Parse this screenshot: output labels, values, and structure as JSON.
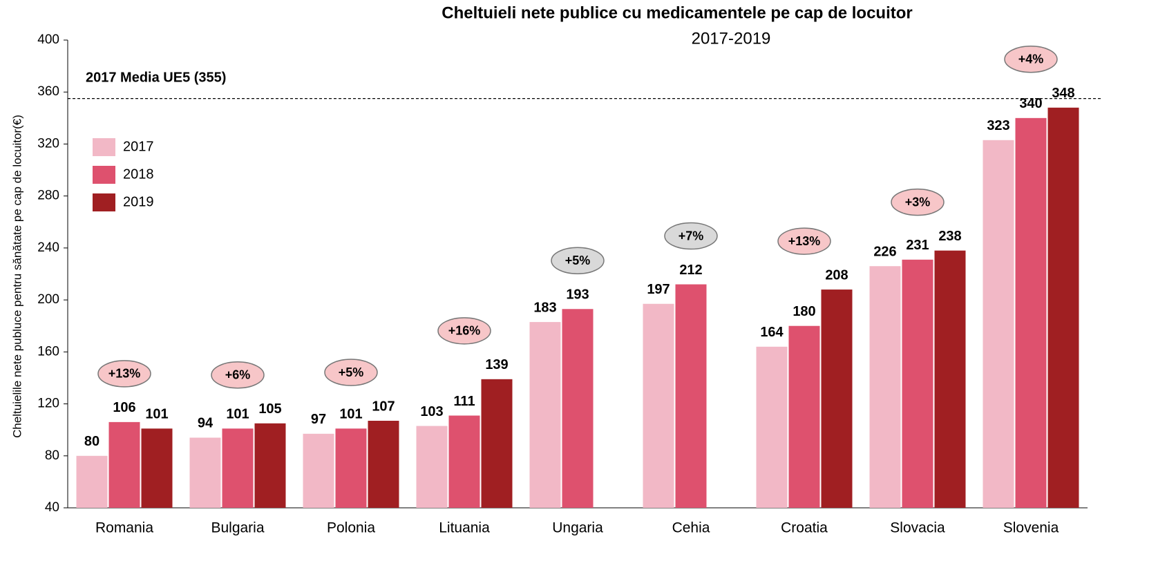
{
  "chart_data": {
    "type": "bar",
    "title": "Cheltuieli nete publice cu medicamentele pe cap de locuitor",
    "subtitle": "2017-2019",
    "y_label": "Cheltuielile nete publuce pentru sănătate pe cap de locuitor(€)",
    "categories": [
      "Romania",
      "Bulgaria",
      "Polonia",
      "Lituania",
      "Ungaria",
      "Cehia",
      "Croatia",
      "Slovacia",
      "Slovenia"
    ],
    "series": [
      {
        "name": "2017",
        "color": "#f2b8c6",
        "values": [
          80,
          94,
          97,
          103,
          183,
          197,
          164,
          226,
          323
        ]
      },
      {
        "name": "2018",
        "color": "#de516e",
        "values": [
          106,
          101,
          101,
          111,
          193,
          212,
          180,
          231,
          340
        ]
      },
      {
        "name": "2019",
        "color": "#a01f22",
        "values": [
          101,
          105,
          107,
          139,
          null,
          null,
          208,
          238,
          348
        ]
      }
    ],
    "annotations": [
      {
        "text": "+13%",
        "color": "#f7c6c8"
      },
      {
        "text": "+6%",
        "color": "#f7c6c8"
      },
      {
        "text": "+5%",
        "color": "#f7c6c8"
      },
      {
        "text": "+16%",
        "color": "#f7c6c8"
      },
      {
        "text": "+5%",
        "color": "#d9d9d9"
      },
      {
        "text": "+7%",
        "color": "#d9d9d9"
      },
      {
        "text": "+13%",
        "color": "#f7c6c8"
      },
      {
        "text": "+3%",
        "color": "#f7c6c8"
      },
      {
        "text": "+4%",
        "color": "#f7c6c8"
      }
    ],
    "reference_line": {
      "value": 355,
      "label": "2017 Media UE5 (355)"
    },
    "ylim": [
      40,
      400
    ],
    "yticks": [
      40,
      80,
      120,
      160,
      200,
      240,
      280,
      320,
      360,
      400
    ],
    "legend": "upper left"
  }
}
